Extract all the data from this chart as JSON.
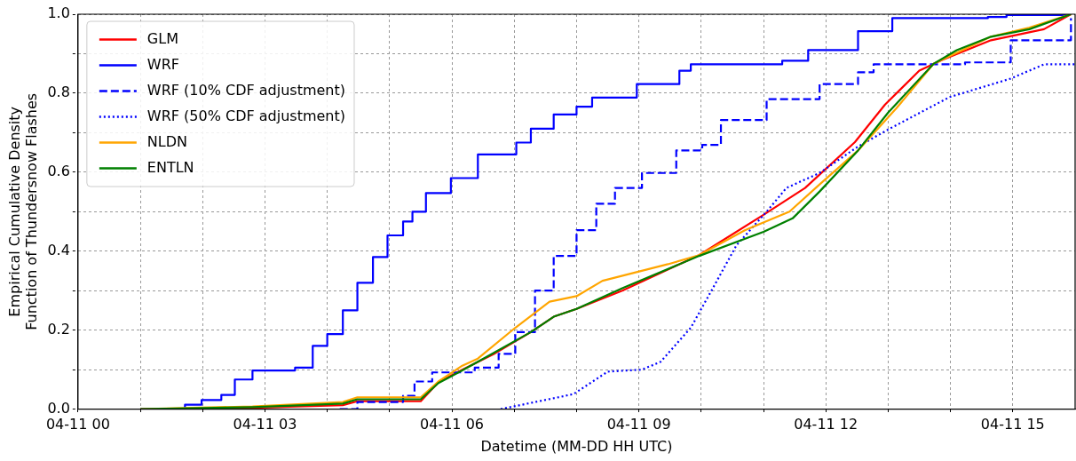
{
  "chart_data": {
    "type": "line",
    "xlabel": "Datetime (MM-DD HH UTC)",
    "ylabel": "Empirical Cumulative Density\nFunction of Thundersnow Flashes",
    "xlim": [
      "--04-11T00:00",
      "--04-11T16:00"
    ],
    "ylim": [
      0,
      1
    ],
    "xticks": [
      {
        "value": "--04-11T00:00",
        "label": "04-11 00"
      },
      {
        "value": "--04-11T01:00",
        "label": null
      },
      {
        "value": "--04-11T02:00",
        "label": null
      },
      {
        "value": "--04-11T03:00",
        "label": "04-11 03"
      },
      {
        "value": "--04-11T04:00",
        "label": null
      },
      {
        "value": "--04-11T05:00",
        "label": null
      },
      {
        "value": "--04-11T06:00",
        "label": "04-11 06"
      },
      {
        "value": "--04-11T07:00",
        "label": null
      },
      {
        "value": "--04-11T08:00",
        "label": null
      },
      {
        "value": "--04-11T09:00",
        "label": "04-11 09"
      },
      {
        "value": "--04-11T10:00",
        "label": null
      },
      {
        "value": "--04-11T11:00",
        "label": null
      },
      {
        "value": "--04-11T12:00",
        "label": "04-11 12"
      },
      {
        "value": "--04-11T13:00",
        "label": null
      },
      {
        "value": "--04-11T14:00",
        "label": null
      },
      {
        "value": "--04-11T15:00",
        "label": "04-11 15"
      }
    ],
    "yticks": [
      {
        "value": 0,
        "label": "0.0"
      },
      {
        "value": 0.1,
        "label": null
      },
      {
        "value": 0.2,
        "label": "0.2"
      },
      {
        "value": 0.3,
        "label": null
      },
      {
        "value": 0.4,
        "label": "0.4"
      },
      {
        "value": 0.5,
        "label": null
      },
      {
        "value": 0.6,
        "label": "0.6"
      },
      {
        "value": 0.7,
        "label": null
      },
      {
        "value": 0.8,
        "label": "0.8"
      },
      {
        "value": 0.9,
        "label": null
      },
      {
        "value": 1,
        "label": "1.0"
      }
    ],
    "grid": true,
    "legend": "top left",
    "marker": "none",
    "series": [
      {
        "name": "GLM",
        "color": "#ff0000",
        "line_style": "solid",
        "x": [
          "--04-11T01:00",
          "--04-11T02:48",
          "--04-11T04:15",
          "--04-11T04:29",
          "--04-11T05:30",
          "--04-11T05:47",
          "--04-11T06:10",
          "--04-11T06:40",
          "--04-11T07:16",
          "--04-11T07:38",
          "--04-11T08:00",
          "--04-11T08:44",
          "--04-11T09:58",
          "--04-11T11:00",
          "--04-11T11:40",
          "--04-11T12:28",
          "--04-11T12:57",
          "--04-11T13:30",
          "--04-11T13:52",
          "--04-11T14:39",
          "--04-11T15:30",
          "--04-11T15:56"
        ],
        "values": [
          0,
          0.003,
          0.01,
          0.02,
          0.02,
          0.068,
          0.1,
          0.139,
          0.195,
          0.234,
          0.254,
          0.3,
          0.39,
          0.492,
          0.56,
          0.676,
          0.771,
          0.857,
          0.884,
          0.934,
          0.962,
          1.0
        ]
      },
      {
        "name": "WRF",
        "type": "step",
        "color": "#0000ff",
        "line_style": "solid",
        "x": [
          "--04-11T01:00",
          "--04-11T01:43",
          "--04-11T01:59",
          "--04-11T02:18",
          "--04-11T02:31",
          "--04-11T02:48",
          "--04-11T03:29",
          "--04-11T03:46",
          "--04-11T04:00",
          "--04-11T04:15",
          "--04-11T04:29",
          "--04-11T04:44",
          "--04-11T04:58",
          "--04-11T05:13",
          "--04-11T05:22",
          "--04-11T05:35",
          "--04-11T05:59",
          "--04-11T06:25",
          "--04-11T07:02",
          "--04-11T07:16",
          "--04-11T07:38",
          "--04-11T08:00",
          "--04-11T08:15",
          "--04-11T08:58",
          "--04-11T09:39",
          "--04-11T09:50",
          "--04-11T10:42",
          "--04-11T11:18",
          "--04-11T11:43",
          "--04-11T12:31",
          "--04-11T13:04",
          "--04-11T14:36",
          "--04-11T14:54",
          "--04-11T15:54"
        ],
        "values": [
          0,
          0.011,
          0.023,
          0.036,
          0.075,
          0.098,
          0.105,
          0.16,
          0.19,
          0.25,
          0.32,
          0.385,
          0.44,
          0.475,
          0.5,
          0.547,
          0.585,
          0.645,
          0.675,
          0.71,
          0.746,
          0.766,
          0.789,
          0.823,
          0.857,
          0.873,
          0.873,
          0.882,
          0.909,
          0.957,
          0.99,
          0.993,
          0.998,
          1.0
        ]
      },
      {
        "name": "WRF (10% CDF adjustment)",
        "type": "step",
        "color": "#0000ff",
        "line_style": "dashed",
        "x": [
          "--04-11T04:12",
          "--04-11T04:29",
          "--04-11T05:13",
          "--04-11T05:24",
          "--04-11T05:41",
          "--04-11T06:22",
          "--04-11T06:45",
          "--04-11T07:01",
          "--04-11T07:20",
          "--04-11T07:38",
          "--04-11T08:00",
          "--04-11T08:19",
          "--04-11T08:37",
          "--04-11T09:03",
          "--04-11T09:36",
          "--04-11T10:01",
          "--04-11T10:19",
          "--04-11T11:03",
          "--04-11T11:54",
          "--04-11T12:31",
          "--04-11T12:46",
          "--04-11T14:14",
          "--04-11T14:58",
          "--04-11T15:56"
        ],
        "values": [
          0,
          0.018,
          0.034,
          0.07,
          0.093,
          0.105,
          0.14,
          0.195,
          0.3,
          0.388,
          0.453,
          0.52,
          0.56,
          0.598,
          0.655,
          0.669,
          0.732,
          0.785,
          0.823,
          0.853,
          0.873,
          0.878,
          0.934,
          0.99
        ]
      },
      {
        "name": "WRF (50% CDF adjustment)",
        "color": "#0000ff",
        "line_style": "dotted",
        "x": [
          "--04-11T06:47",
          "--04-11T07:57",
          "--04-11T08:30",
          "--04-11T09:03",
          "--04-11T09:21",
          "--04-11T09:50",
          "--04-11T10:12",
          "--04-11T10:34",
          "--04-11T11:03",
          "--04-11T11:22",
          "--04-11T11:54",
          "--04-11T12:31",
          "--04-11T13:00",
          "--04-11T13:59",
          "--04-11T14:58",
          "--04-11T15:30",
          "--04-11T16:00"
        ],
        "values": [
          0,
          0.038,
          0.095,
          0.1,
          0.12,
          0.206,
          0.31,
          0.415,
          0.5,
          0.56,
          0.598,
          0.665,
          0.708,
          0.79,
          0.837,
          0.873,
          0.873
        ]
      },
      {
        "name": "NLDN",
        "color": "#ffa500",
        "line_style": "solid",
        "x": [
          "--04-11T01:00",
          "--04-11T02:48",
          "--04-11T04:15",
          "--04-11T04:29",
          "--04-11T05:30",
          "--04-11T05:47",
          "--04-11T06:10",
          "--04-11T06:25",
          "--04-11T07:01",
          "--04-11T07:34",
          "--04-11T08:00",
          "--04-11T08:25",
          "--04-11T09:28",
          "--04-11T09:58",
          "--04-11T10:42",
          "--04-11T11:25",
          "--04-11T11:54",
          "--04-11T12:31",
          "--04-11T13:08",
          "--04-11T13:44",
          "--04-11T14:39",
          "--04-11T15:16",
          "--04-11T15:56"
        ],
        "values": [
          0,
          0.007,
          0.018,
          0.03,
          0.03,
          0.07,
          0.11,
          0.128,
          0.206,
          0.272,
          0.286,
          0.325,
          0.367,
          0.39,
          0.453,
          0.5,
          0.569,
          0.655,
          0.762,
          0.875,
          0.943,
          0.966,
          1.0
        ]
      },
      {
        "name": "ENTLN",
        "color": "#008000",
        "line_style": "solid",
        "x": [
          "--04-11T01:00",
          "--04-11T02:48",
          "--04-11T04:15",
          "--04-11T04:29",
          "--04-11T05:30",
          "--04-11T05:47",
          "--04-11T06:10",
          "--04-11T06:25",
          "--04-11T07:16",
          "--04-11T07:38",
          "--04-11T08:00",
          "--04-11T08:44",
          "--04-11T09:58",
          "--04-11T11:00",
          "--04-11T11:28",
          "--04-11T11:54",
          "--04-11T12:31",
          "--04-11T13:00",
          "--04-11T13:44",
          "--04-11T14:06",
          "--04-11T14:39",
          "--04-11T15:16",
          "--04-11T15:56"
        ],
        "values": [
          0,
          0.005,
          0.014,
          0.025,
          0.025,
          0.066,
          0.098,
          0.12,
          0.195,
          0.234,
          0.254,
          0.306,
          0.388,
          0.449,
          0.483,
          0.551,
          0.655,
          0.751,
          0.875,
          0.909,
          0.943,
          0.962,
          1.0
        ]
      }
    ]
  }
}
